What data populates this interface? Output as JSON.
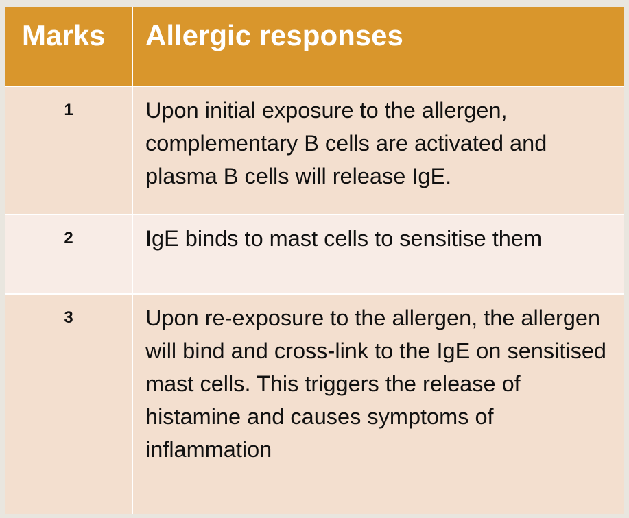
{
  "table": {
    "header": {
      "marks": "Marks",
      "responses": "Allergic responses"
    },
    "rows": [
      {
        "mark": "1",
        "text": "Upon initial exposure to the allergen, complementary B cells are activated and plasma B cells will release IgE."
      },
      {
        "mark": "2",
        "text": "IgE binds to mast cells to sensitise them"
      },
      {
        "mark": "3",
        "text": "Upon re-exposure to the allergen, the allergen will bind and cross-link to the IgE on sensitised mast cells. This triggers the release of histamine and causes symptoms of inflammation"
      }
    ]
  },
  "colors": {
    "header": "#d9962c",
    "row_shade": "#f3dfcf",
    "row_light": "#f8ece6",
    "background": "#e9e6df"
  }
}
